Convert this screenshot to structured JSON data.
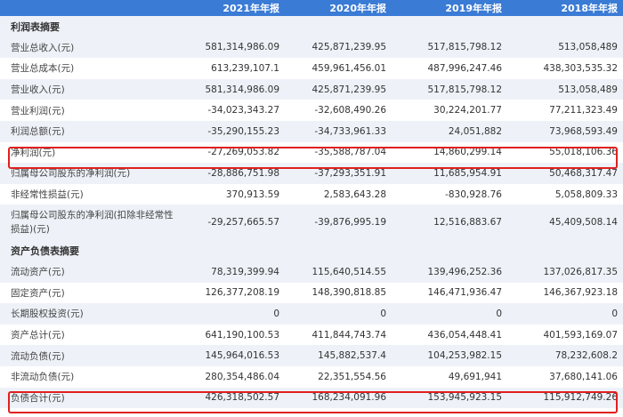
{
  "header": {
    "blank": "",
    "years": [
      "2021年年报",
      "2020年年报",
      "2019年年报",
      "2018年年报"
    ]
  },
  "sections": {
    "income": {
      "title": "利润表摘要"
    },
    "balance": {
      "title": "资产负债表摘要"
    }
  },
  "income_rows": [
    {
      "label": "营业总收入(元)",
      "v": [
        "581,314,986.09",
        "425,871,239.95",
        "517,815,798.12",
        "513,058,489"
      ]
    },
    {
      "label": "营业总成本(元)",
      "v": [
        "613,239,107.1",
        "459,961,456.01",
        "487,996,247.46",
        "438,303,535.32"
      ]
    },
    {
      "label": "营业收入(元)",
      "v": [
        "581,314,986.09",
        "425,871,239.95",
        "517,815,798.12",
        "513,058,489"
      ]
    },
    {
      "label": "营业利润(元)",
      "v": [
        "-34,023,343.27",
        "-32,608,490.26",
        "30,224,201.77",
        "77,211,323.49"
      ]
    },
    {
      "label": "利润总额(元)",
      "v": [
        "-35,290,155.23",
        "-34,733,961.33",
        "24,051,882",
        "73,968,593.49"
      ]
    },
    {
      "label": "净利润(元)",
      "v": [
        "-27,269,053.82",
        "-35,588,787.04",
        "14,860,299.14",
        "55,018,106.36"
      ]
    },
    {
      "label": "归属母公司股东的净利润(元)",
      "v": [
        "-28,886,751.98",
        "-37,293,351.91",
        "11,685,954.91",
        "50,468,317.47"
      ]
    },
    {
      "label": "非经常性损益(元)",
      "v": [
        "370,913.59",
        "2,583,643.28",
        "-830,928.76",
        "5,058,809.33"
      ]
    },
    {
      "label": "归属母公司股东的净利润(扣除非经常性损益)(元)",
      "v": [
        "-29,257,665.57",
        "-39,876,995.19",
        "12,516,883.67",
        "45,409,508.14"
      ]
    }
  ],
  "balance_rows": [
    {
      "label": "流动资产(元)",
      "v": [
        "78,319,399.94",
        "115,640,514.55",
        "139,496,252.36",
        "137,026,817.35"
      ]
    },
    {
      "label": "固定资产(元)",
      "v": [
        "126,377,208.19",
        "148,390,818.85",
        "146,471,936.47",
        "146,367,923.18"
      ]
    },
    {
      "label": "长期股权投资(元)",
      "v": [
        "0",
        "0",
        "0",
        "0"
      ]
    },
    {
      "label": "资产总计(元)",
      "v": [
        "641,190,100.53",
        "411,844,743.74",
        "436,054,448.41",
        "401,593,169.07"
      ]
    },
    {
      "label": "流动负债(元)",
      "v": [
        "145,964,016.53",
        "145,882,537.4",
        "104,253,982.15",
        "78,232,608.2"
      ]
    },
    {
      "label": "非流动负债(元)",
      "v": [
        "280,354,486.04",
        "22,351,554.56",
        "49,691,941",
        "37,680,141.06"
      ]
    },
    {
      "label": "负债合计(元)",
      "v": [
        "426,318,502.57",
        "168,234,091.96",
        "153,945,923.15",
        "115,912,749.26"
      ]
    }
  ],
  "colors": {
    "header_bg": "#3a7bd5",
    "alt_row": "#eef2f8",
    "highlight": "#e02020"
  }
}
